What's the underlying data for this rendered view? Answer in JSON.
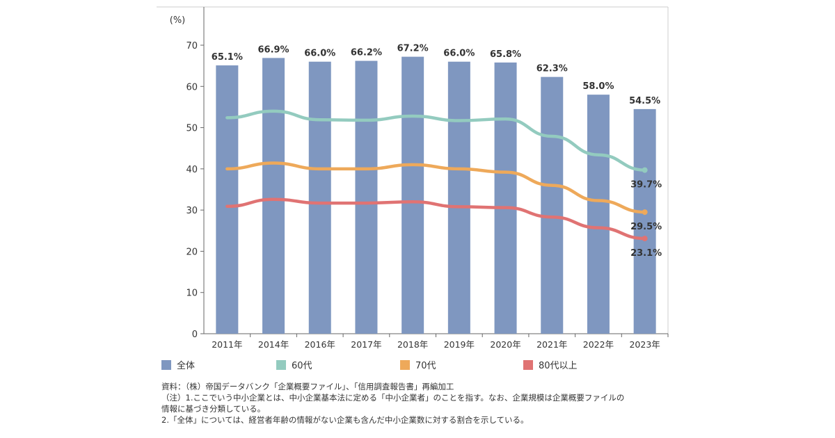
{
  "chart_data": {
    "type": "bar+line",
    "ylabel": "(%)",
    "ylim": [
      0,
      70
    ],
    "yticks": [
      0,
      10,
      20,
      30,
      40,
      50,
      60,
      70
    ],
    "categories": [
      "2011年",
      "2014年",
      "2016年",
      "2017年",
      "2018年",
      "2019年",
      "2020年",
      "2021年",
      "2022年",
      "2023年"
    ],
    "series": [
      {
        "name": "全体",
        "type": "bar",
        "color": "#7f97c0",
        "values": [
          65.1,
          66.9,
          66.0,
          66.2,
          67.2,
          66.0,
          65.8,
          62.3,
          58.0,
          54.5
        ],
        "labels": [
          "65.1%",
          "66.9%",
          "66.0%",
          "66.2%",
          "67.2%",
          "66.0%",
          "65.8%",
          "62.3%",
          "58.0%",
          "54.5%"
        ]
      },
      {
        "name": "60代",
        "type": "line",
        "color": "#93cbbf",
        "values": [
          52.4,
          54.0,
          51.9,
          51.8,
          52.8,
          51.7,
          52.1,
          47.9,
          43.4,
          39.7
        ],
        "end_label": "39.7%"
      },
      {
        "name": "70代",
        "type": "line",
        "color": "#eea95a",
        "values": [
          40.0,
          41.4,
          40.0,
          40.0,
          41.0,
          40.0,
          39.2,
          36.0,
          32.3,
          29.5
        ],
        "end_label": "29.5%"
      },
      {
        "name": "80代以上",
        "type": "line",
        "color": "#e07373",
        "values": [
          30.9,
          32.6,
          31.7,
          31.7,
          32.0,
          30.8,
          30.6,
          28.3,
          25.7,
          23.1
        ],
        "end_label": "23.1%"
      }
    ],
    "legend": "bottom"
  },
  "notes": {
    "source": "資料：（株）帝国データバンク「企業概要ファイル」、「信用調査報告書」再編加工",
    "note1a": "（注）1.ここでいう中小企業とは、中小企業基本法に定める「中小企業者」のことを指す。なお、企業規模は企業概要ファイルの",
    "note1b": "情報に基づき分類している。",
    "note2": "2.「全体」については、経営者年齢の情報がない企業も含んだ中小企業数に対する割合を示している。"
  }
}
